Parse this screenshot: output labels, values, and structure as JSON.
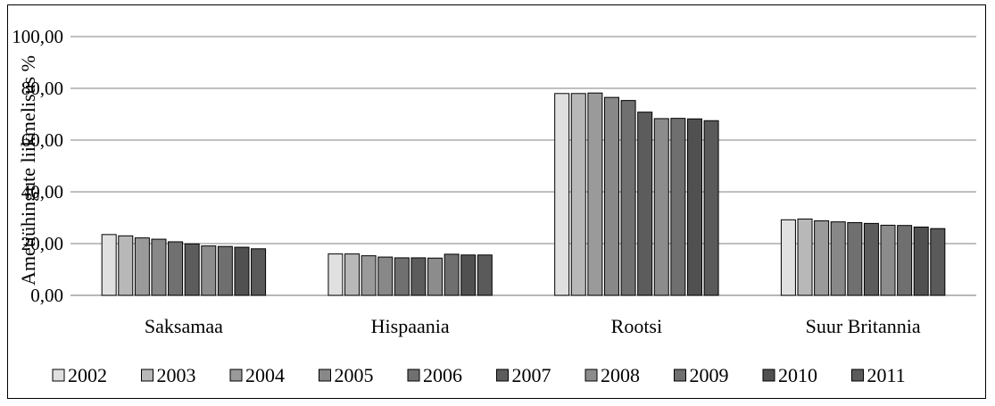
{
  "chart_data": {
    "type": "bar",
    "ylabel": "Ametiühingute liikmelisus %",
    "ylim": [
      0,
      100
    ],
    "yticks": [
      "0,00",
      "20,00",
      "40,00",
      "60,00",
      "80,00",
      "100,00"
    ],
    "grid": true,
    "legend_position": "bottom",
    "categories": [
      "Saksamaa",
      "Hispaania",
      "Rootsi",
      "Suur Britannia"
    ],
    "series": [
      {
        "name": "2002",
        "color": "#e0e0e0",
        "values": [
          23.5,
          16.0,
          78.0,
          29.2
        ]
      },
      {
        "name": "2003",
        "color": "#b8b8b8",
        "values": [
          23.0,
          16.0,
          78.0,
          29.5
        ]
      },
      {
        "name": "2004",
        "color": "#9a9a9a",
        "values": [
          22.2,
          15.3,
          78.2,
          28.8
        ]
      },
      {
        "name": "2005",
        "color": "#888888",
        "values": [
          21.7,
          14.8,
          76.5,
          28.4
        ]
      },
      {
        "name": "2006",
        "color": "#707070",
        "values": [
          20.7,
          14.5,
          75.3,
          28.1
        ]
      },
      {
        "name": "2007",
        "color": "#5c5c5c",
        "values": [
          19.9,
          14.5,
          70.8,
          27.8
        ]
      },
      {
        "name": "2008",
        "color": "#8c8c8c",
        "values": [
          19.1,
          14.4,
          68.3,
          27.1
        ]
      },
      {
        "name": "2009",
        "color": "#6f6f6f",
        "values": [
          18.9,
          15.9,
          68.4,
          27.0
        ]
      },
      {
        "name": "2010",
        "color": "#505050",
        "values": [
          18.6,
          15.6,
          68.2,
          26.4
        ]
      },
      {
        "name": "2011",
        "color": "#5a5a5a",
        "values": [
          18.0,
          15.6,
          67.5,
          25.8
        ]
      }
    ]
  }
}
